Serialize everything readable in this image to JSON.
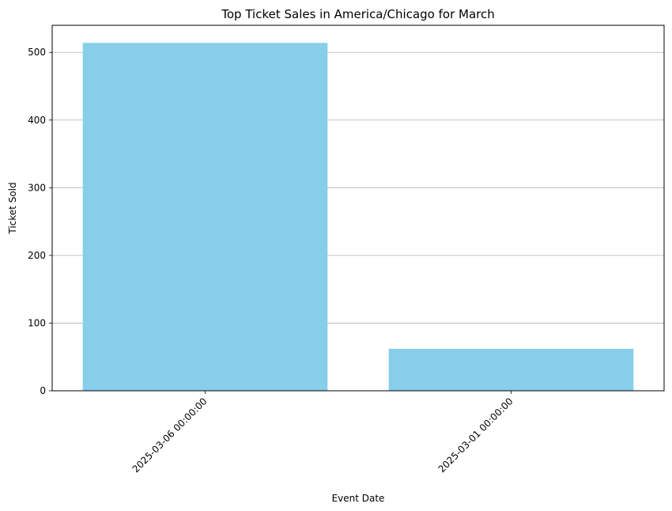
{
  "chart_data": {
    "type": "bar",
    "title": "Top Ticket Sales in America/Chicago for March",
    "xlabel": "Event Date",
    "ylabel": "Ticket Sold",
    "categories": [
      "2025-03-06 00:00:00",
      "2025-03-01 00:00:00"
    ],
    "values": [
      514,
      62
    ],
    "ylim": [
      0,
      540
    ],
    "yticks": [
      0,
      100,
      200,
      300,
      400,
      500
    ],
    "bar_color": "#87ceeb",
    "grid": "y",
    "x_tick_rotation": "45 degrees"
  }
}
